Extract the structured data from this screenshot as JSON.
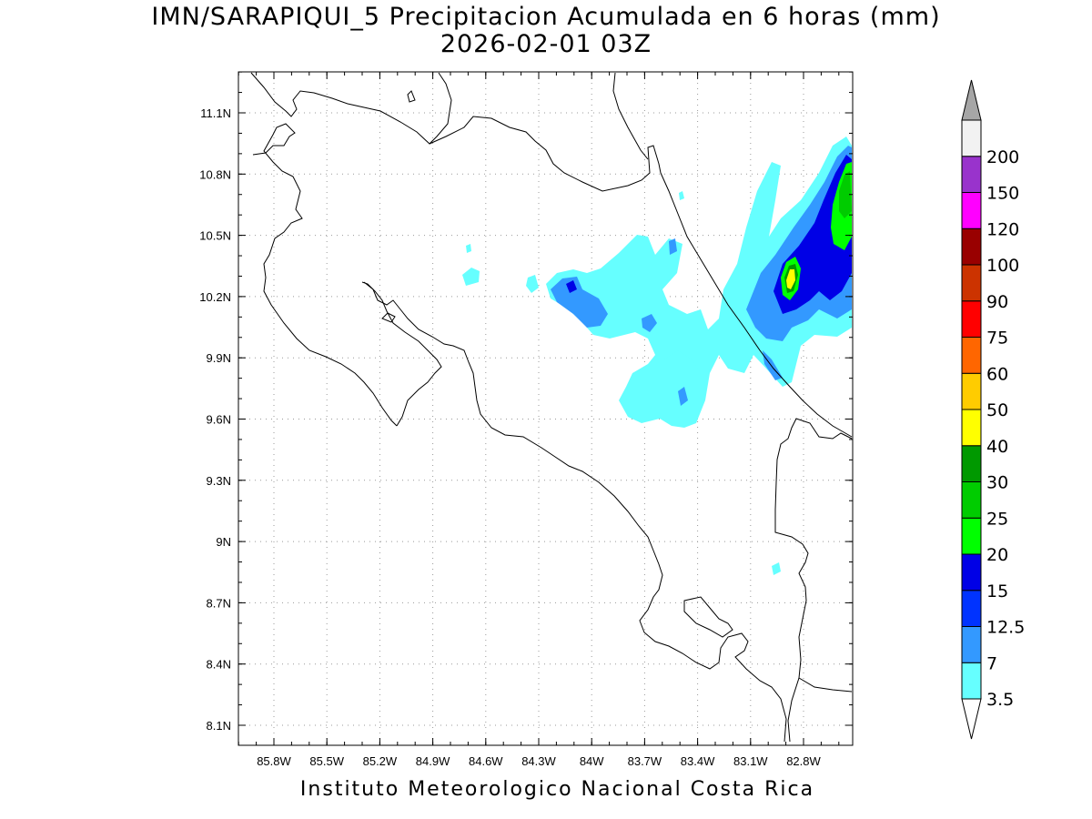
{
  "title": {
    "line1": "IMN/SARAPIQUI_5 Precipitacion Acumulada en 6 horas (mm)",
    "line2": "2026-02-01 03Z"
  },
  "footer": "Instituto Meteorologico Nacional Costa Rica",
  "map": {
    "lon_range": [
      -85.95,
      -82.95
    ],
    "lat_range": [
      8.0,
      11.3
    ],
    "lon_ticks": [
      "85.8W",
      "85.5W",
      "85.2W",
      "84.9W",
      "84.6W",
      "84.3W",
      "84W",
      "83.7W",
      "83.4W",
      "83.1W",
      "82.8W"
    ],
    "lat_ticks": [
      "11.1N",
      "10.8N",
      "10.5N",
      "10.2N",
      "9.9N",
      "9.6N",
      "9.3N",
      "9N",
      "8.7N",
      "8.4N",
      "8.1N"
    ],
    "grid": true
  },
  "legend": {
    "levels": [
      "3.5",
      "7",
      "12.5",
      "15",
      "20",
      "25",
      "30",
      "40",
      "50",
      "60",
      "75",
      "90",
      "100",
      "120",
      "150",
      "200"
    ],
    "colors": [
      "#66ffff",
      "#3399ff",
      "#0033ff",
      "#0000e6",
      "#00ff00",
      "#00cc00",
      "#009900",
      "#ffff00",
      "#ffcc00",
      "#ff6600",
      "#ff0000",
      "#cc3300",
      "#990000",
      "#ff00ff",
      "#9933cc",
      "#f2f2f2"
    ],
    "over_color": "#a6a6a6",
    "under_color": "#ffffff"
  }
}
